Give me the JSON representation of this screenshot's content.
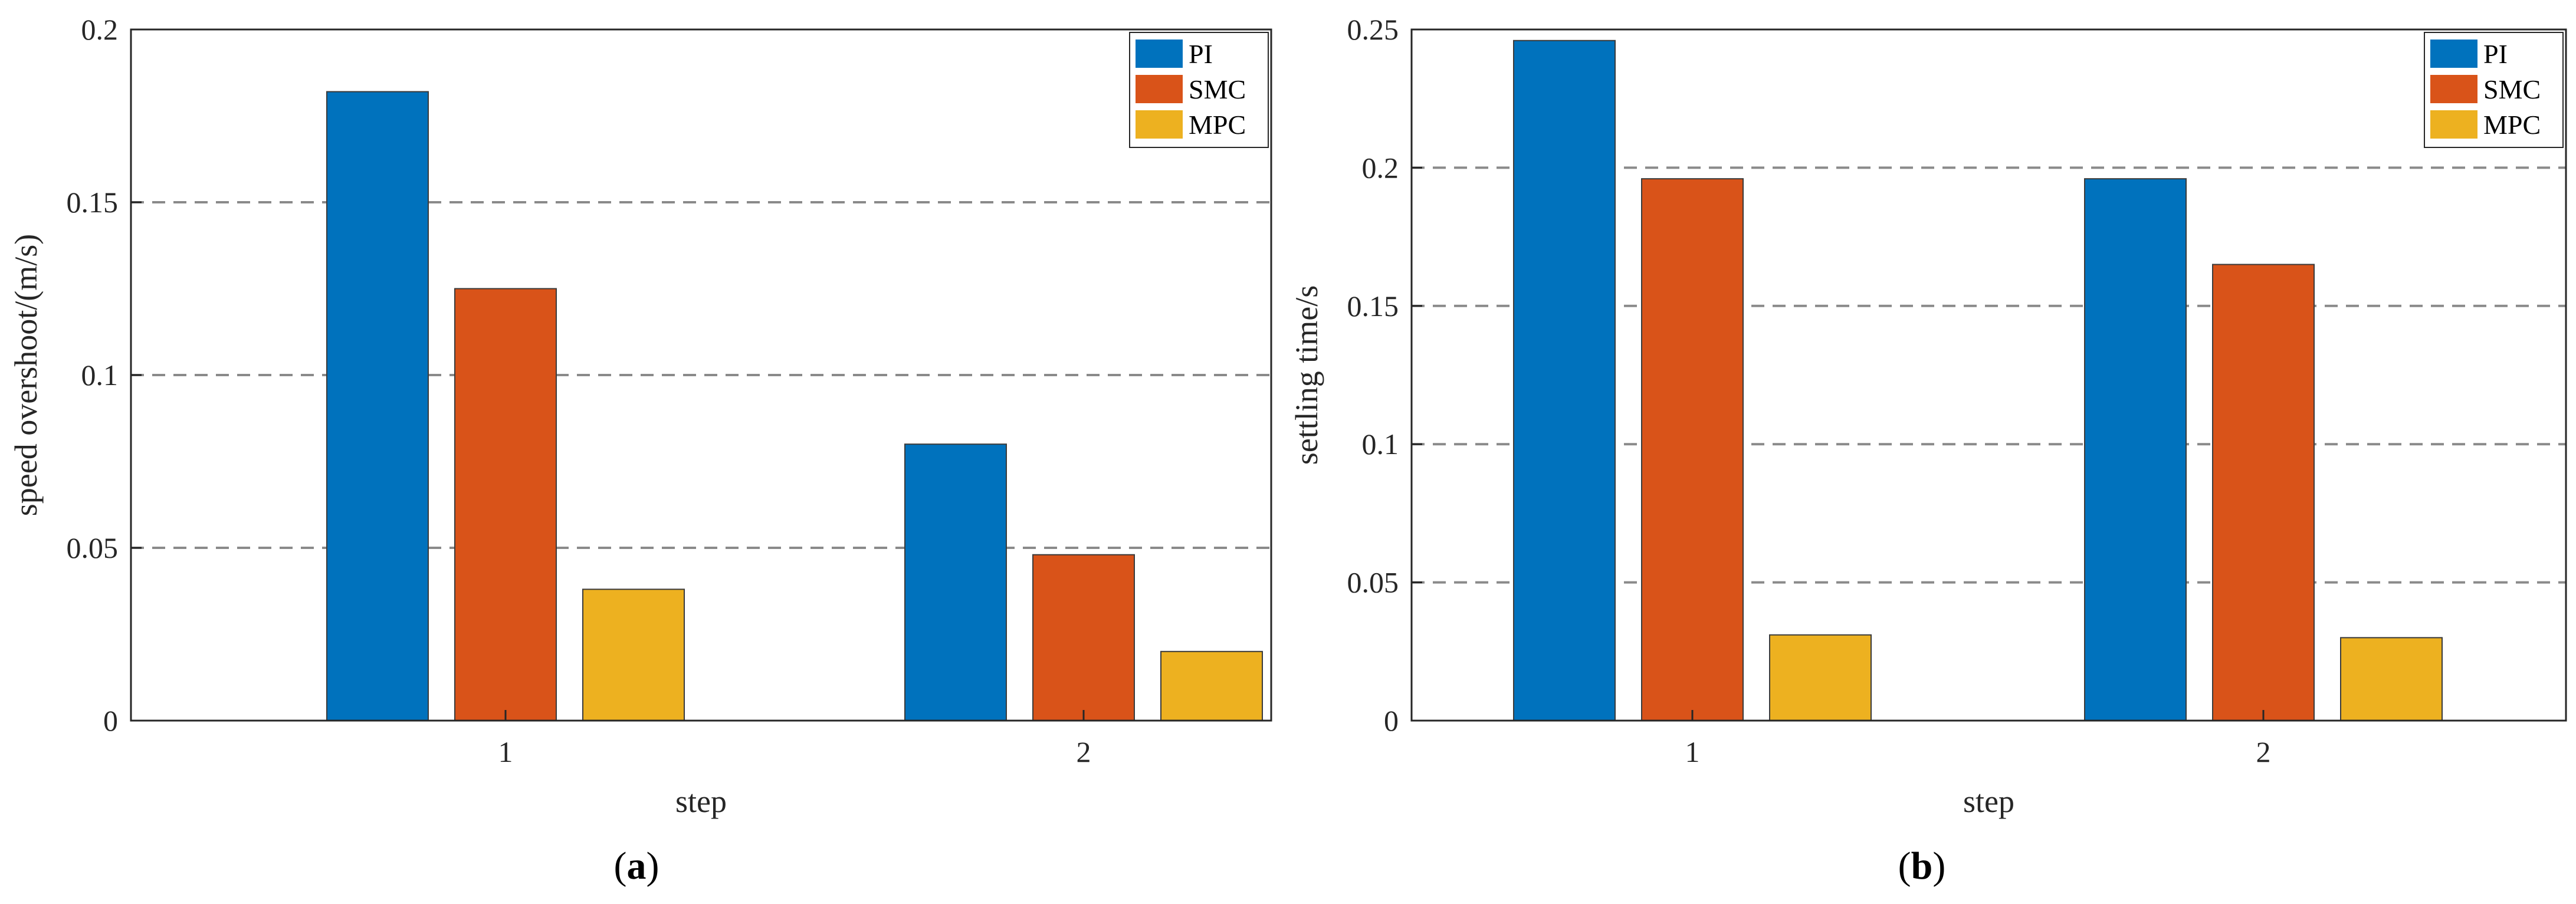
{
  "panels": [
    {
      "label_open": "(",
      "label_letter": "a",
      "label_close": ")"
    },
    {
      "label_open": "(",
      "label_letter": "b",
      "label_close": ")"
    }
  ],
  "chart_data": [
    {
      "type": "bar",
      "categories": [
        "1",
        "2"
      ],
      "xlabel": "step",
      "ylabel": "speed overshoot/(m/s)",
      "ylim": [
        0,
        0.2
      ],
      "yticks": [
        0,
        0.05,
        0.1,
        0.15,
        0.2
      ],
      "ytick_labels": [
        "0",
        "0.05",
        "0.1",
        "0.15",
        "0.2"
      ],
      "grid": "horizontal dashed",
      "legend_position": "top-right",
      "series": [
        {
          "name": "PI",
          "color": "#0072BD",
          "values": [
            0.182,
            0.08
          ]
        },
        {
          "name": "SMC",
          "color": "#D95319",
          "values": [
            0.125,
            0.048
          ]
        },
        {
          "name": "MPC",
          "color": "#EDB120",
          "values": [
            0.038,
            0.02
          ]
        }
      ]
    },
    {
      "type": "bar",
      "categories": [
        "1",
        "2"
      ],
      "xlabel": "step",
      "ylabel": "settling time/s",
      "ylim": [
        0,
        0.25
      ],
      "yticks": [
        0,
        0.05,
        0.1,
        0.15,
        0.2,
        0.25
      ],
      "ytick_labels": [
        "0",
        "0.05",
        "0.1",
        "0.15",
        "0.2",
        "0.25"
      ],
      "grid": "horizontal dashed",
      "legend_position": "top-right",
      "series": [
        {
          "name": "PI",
          "color": "#0072BD",
          "values": [
            0.246,
            0.196
          ]
        },
        {
          "name": "SMC",
          "color": "#D95319",
          "values": [
            0.196,
            0.165
          ]
        },
        {
          "name": "MPC",
          "color": "#EDB120",
          "values": [
            0.031,
            0.03
          ]
        }
      ]
    }
  ]
}
